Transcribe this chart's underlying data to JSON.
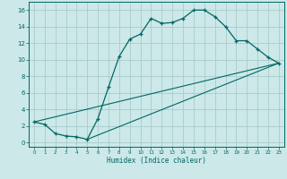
{
  "xlabel": "Humidex (Indice chaleur)",
  "bg_color": "#cce8e8",
  "line_color": "#006666",
  "grid_color": "#aacccc",
  "ylim": [
    -0.5,
    17
  ],
  "xlim": [
    -0.5,
    23.5
  ],
  "yticks": [
    0,
    2,
    4,
    6,
    8,
    10,
    12,
    14,
    16
  ],
  "xticks": [
    0,
    1,
    2,
    3,
    4,
    5,
    6,
    7,
    8,
    9,
    10,
    11,
    12,
    13,
    14,
    15,
    16,
    17,
    18,
    19,
    20,
    21,
    22,
    23
  ],
  "line1_x": [
    0,
    1,
    2,
    3,
    4,
    5,
    6,
    7,
    8,
    9,
    10,
    11,
    12,
    13,
    14,
    15,
    16,
    17,
    18,
    19,
    20,
    21,
    22,
    23
  ],
  "line1_y": [
    2.5,
    2.2,
    1.1,
    0.8,
    0.7,
    0.4,
    2.9,
    6.7,
    10.4,
    12.5,
    13.1,
    15.0,
    14.4,
    14.5,
    15.0,
    16.0,
    16.0,
    15.2,
    14.0,
    12.3,
    12.3,
    11.3,
    10.3,
    9.6
  ],
  "line2_x": [
    0,
    23
  ],
  "line2_y": [
    2.5,
    9.6
  ],
  "line3_x": [
    5,
    23
  ],
  "line3_y": [
    0.4,
    9.6
  ]
}
